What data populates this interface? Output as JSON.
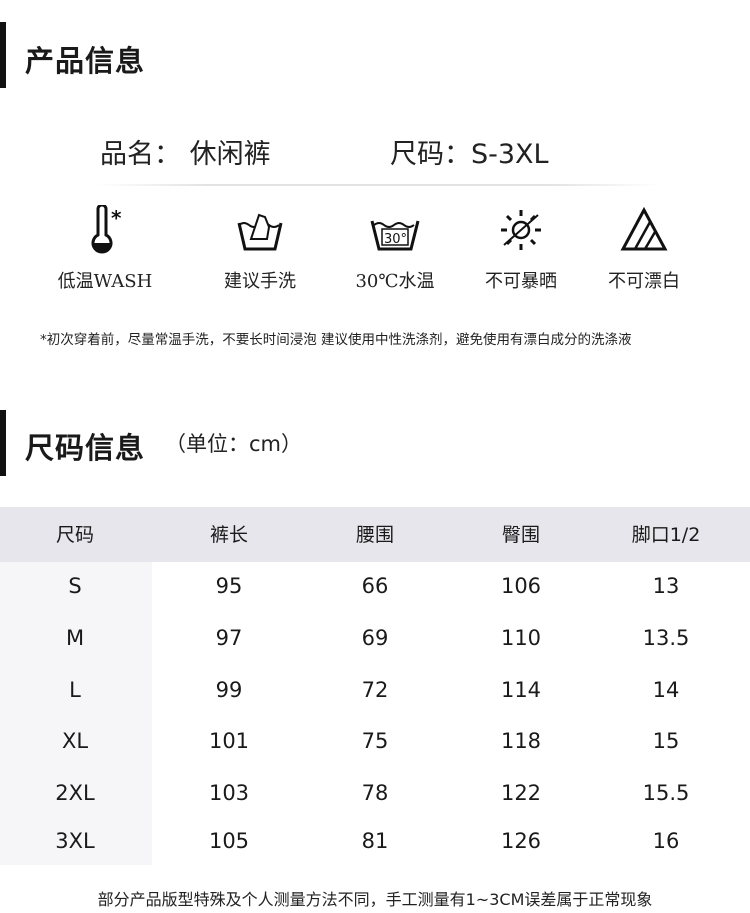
{
  "product_section": {
    "title": "产品信息",
    "name_label": "品名：",
    "name_value": "休闲裤",
    "size_label": "尺码：",
    "size_value": "S-3XL"
  },
  "care": [
    {
      "icon": "thermometer-cold-icon",
      "label": "低温WASH"
    },
    {
      "icon": "hand-wash-icon",
      "label": "建议手洗"
    },
    {
      "icon": "wash-30-icon",
      "label": "30℃水温"
    },
    {
      "icon": "no-sun-icon",
      "label": "不可暴晒"
    },
    {
      "icon": "no-bleach-icon",
      "label": "不可漂白"
    }
  ],
  "care_note": "*初次穿着前，尽量常温手洗，不要长时间浸泡 建议使用中性洗涤剂，避免使用有漂白成分的洗涤液",
  "size_section": {
    "title": "尺码信息",
    "unit": "（单位：cm）"
  },
  "table": {
    "headers": [
      "尺码",
      "裤长",
      "腰围",
      "臀围",
      "脚口1/2"
    ],
    "rows": [
      [
        "S",
        "95",
        "66",
        "106",
        "13"
      ],
      [
        "M",
        "97",
        "69",
        "110",
        "13.5"
      ],
      [
        "L",
        "99",
        "72",
        "114",
        "14"
      ],
      [
        "XL",
        "101",
        "75",
        "118",
        "15"
      ],
      [
        "2XL",
        "103",
        "78",
        "122",
        "15.5"
      ],
      [
        "3XL",
        "105",
        "81",
        "126",
        "16"
      ]
    ]
  },
  "footer_note": "部分产品版型特殊及个人测量方法不同，手工测量有1~3CM误差属于正常现象",
  "colors": {
    "header_bg": "#e6e6ec",
    "text": "#1a1a1a"
  }
}
